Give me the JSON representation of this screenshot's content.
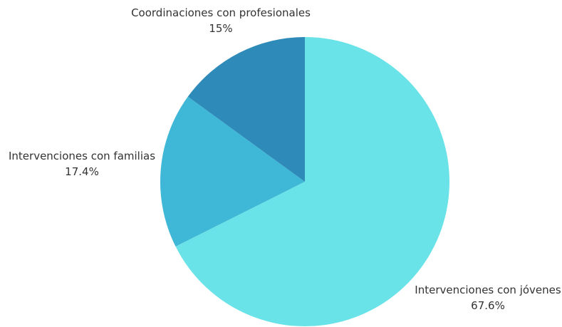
{
  "chart_data": {
    "type": "pie",
    "title": "",
    "slices": [
      {
        "label": "Intervenciones con jóvenes",
        "value": 67.6,
        "value_label": "67.6%",
        "color": "#69e3e8"
      },
      {
        "label": "Intervenciones con familias",
        "value": 17.4,
        "value_label": "17.4%",
        "color": "#3fb7d6"
      },
      {
        "label": "Coordinaciones con profesionales",
        "value": 15,
        "value_label": "15%",
        "color": "#2e8ab8"
      }
    ],
    "start": "top",
    "direction": "clockwise",
    "legend": "none"
  }
}
